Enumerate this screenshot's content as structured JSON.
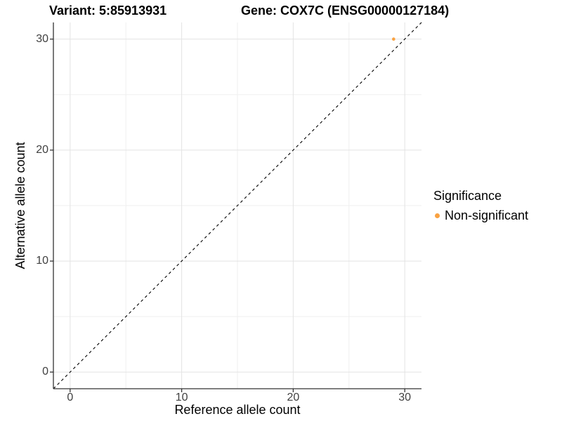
{
  "chart_data": {
    "type": "scatter",
    "title_left": "Variant: 5:85913931",
    "title_right": "Gene: COX7C (ENSG00000127184)",
    "xlabel": "Reference allele count",
    "ylabel": "Alternative allele count",
    "xlim": [
      -1.5,
      31.5
    ],
    "ylim": [
      -1.5,
      31.5
    ],
    "x_ticks": [
      0,
      10,
      20,
      30
    ],
    "y_ticks": [
      0,
      10,
      20,
      30
    ],
    "x_minor_ticks": [
      5,
      15,
      25
    ],
    "y_minor_ticks": [
      5,
      15,
      25
    ],
    "grid": "major and minor gridlines, light gray on white panel",
    "points": [
      {
        "x": 29,
        "y": 30,
        "series": "Non-significant"
      }
    ],
    "point_radius_px": 2.3,
    "identity_line": {
      "style": "dashed",
      "slope": 1,
      "intercept": 0,
      "color": "#000000",
      "dash": "4,4"
    },
    "legend": {
      "title": "Significance",
      "position": "right",
      "items": [
        {
          "label": "Non-significant",
          "color": "#F9A242"
        }
      ]
    },
    "colors": {
      "point": "#F9A242",
      "grid_major": "#E3E3E3",
      "grid_minor": "#EFEFEF",
      "axis_line": "#333333",
      "tick_mark": "#333333",
      "tick_label": "#404040",
      "title_text": "#000000"
    }
  }
}
